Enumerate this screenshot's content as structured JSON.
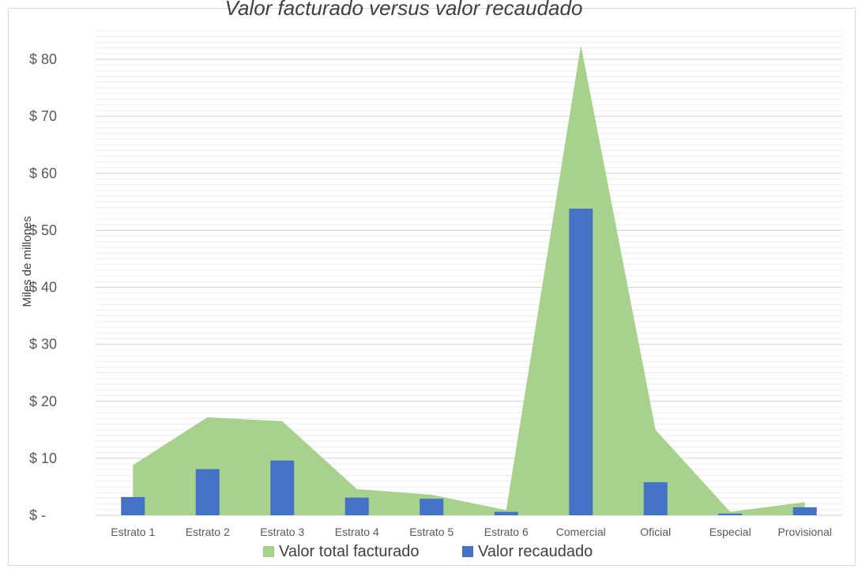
{
  "chart_data": {
    "type": "bar",
    "title": "Valor facturado versus valor recaudado",
    "xlabel": "",
    "ylabel": "Miles de millones",
    "ylim": [
      0,
      85
    ],
    "yticks": [
      0,
      10,
      20,
      30,
      40,
      50,
      60,
      70,
      80
    ],
    "ytick_labels": [
      "$ -",
      "$ 10",
      "$ 20",
      "$ 30",
      "$ 40",
      "$ 50",
      "$ 60",
      "$ 70",
      "$ 80"
    ],
    "categories": [
      "Estrato 1",
      "Estrato 2",
      "Estrato 3",
      "Estrato 4",
      "Estrato 5",
      "Estrato 6",
      "Comercial",
      "Oficial",
      "Especial",
      "Provisional"
    ],
    "series": [
      {
        "name": "Valor total facturado",
        "kind": "area",
        "color": "#a9d18e",
        "values": [
          8.8,
          17.2,
          16.5,
          4.6,
          3.6,
          0.9,
          82.5,
          15.0,
          0.6,
          2.3
        ]
      },
      {
        "name": "Valor recaudado",
        "kind": "bar",
        "color": "#4472c4",
        "values": [
          3.2,
          8.1,
          9.6,
          3.1,
          2.9,
          0.6,
          53.8,
          5.8,
          0.3,
          1.4
        ]
      }
    ],
    "grid": true,
    "legend_position": "bottom"
  }
}
